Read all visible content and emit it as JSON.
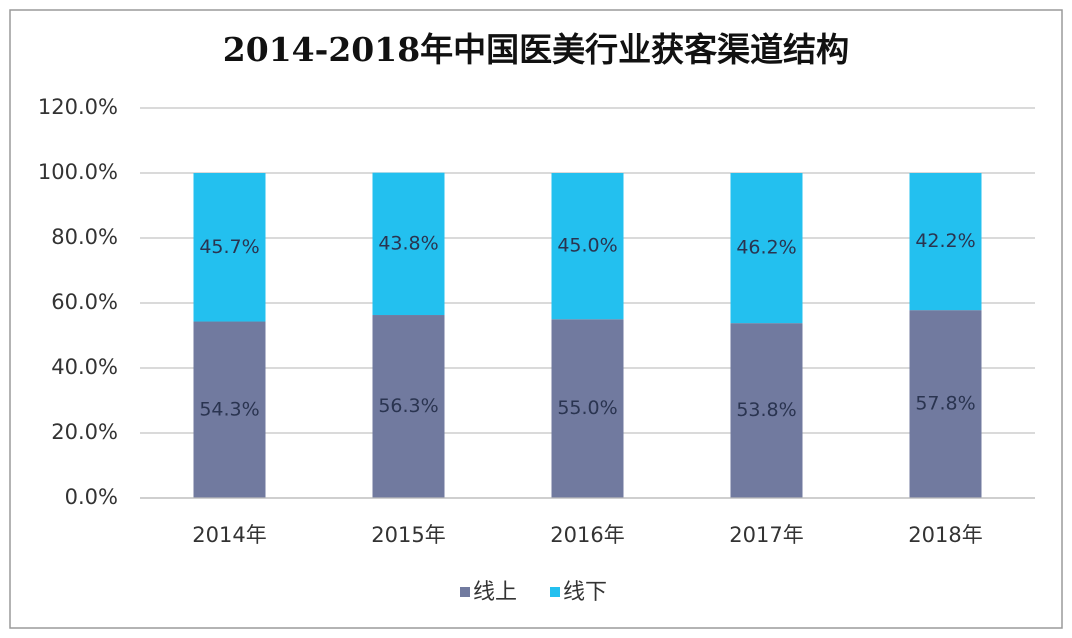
{
  "chart_data": {
    "type": "stacked_bar",
    "title": "2014-2018年中国医美行业获客渠道结构",
    "categories": [
      "2014年",
      "2015年",
      "2016年",
      "2017年",
      "2018年"
    ],
    "series": [
      {
        "name": "线上",
        "color": "#717a9f",
        "values": [
          54.3,
          56.3,
          55.0,
          53.8,
          57.8
        ],
        "value_labels": [
          "54.3%",
          "56.3%",
          "55.0%",
          "53.8%",
          "57.8%"
        ]
      },
      {
        "name": "线下",
        "color": "#23c0ef",
        "values": [
          45.7,
          43.8,
          45.0,
          46.2,
          42.2
        ],
        "value_labels": [
          "45.7%",
          "43.8%",
          "45.0%",
          "46.2%",
          "42.2%"
        ]
      }
    ],
    "ylim": [
      0,
      120
    ],
    "yticks": [
      {
        "value": 0,
        "label": "0.0%"
      },
      {
        "value": 20,
        "label": "20.0%"
      },
      {
        "value": 40,
        "label": "40.0%"
      },
      {
        "value": 60,
        "label": "60.0%"
      },
      {
        "value": 80,
        "label": "80.0%"
      },
      {
        "value": 100,
        "label": "100.0%"
      },
      {
        "value": 120,
        "label": "120.0%"
      }
    ],
    "grid": true,
    "legend": "bottom"
  }
}
